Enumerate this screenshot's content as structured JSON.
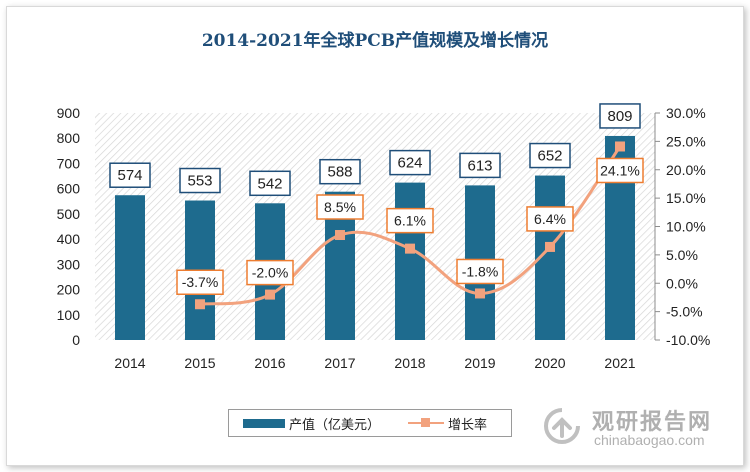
{
  "title": "2014-2021年全球PCB产值规模及增长情况",
  "legend": {
    "bar_label": "产值（亿美元）",
    "line_label": "增长率"
  },
  "watermark": {
    "name": "观研报告网",
    "domain": "chinabaogao.com"
  },
  "colors": {
    "bar": "#1e6b8e",
    "line": "#f2a27e",
    "label_border": "#1f4e79",
    "rate_border": "#ed7d31",
    "title": "#1f4e79"
  },
  "chart_data": {
    "type": "bar",
    "title": "2014-2021年全球PCB产值规模及增长情况",
    "categories": [
      "2014",
      "2015",
      "2016",
      "2017",
      "2018",
      "2019",
      "2020",
      "2021"
    ],
    "series": [
      {
        "name": "产值（亿美元）",
        "type": "bar",
        "axis": "left",
        "values": [
          574,
          553,
          542,
          588,
          624,
          613,
          652,
          809
        ],
        "labels": [
          "574",
          "553",
          "542",
          "588",
          "624",
          "613",
          "652",
          "809"
        ]
      },
      {
        "name": "增长率",
        "type": "line",
        "axis": "right",
        "values": [
          null,
          -3.7,
          -2.0,
          8.5,
          6.1,
          -1.8,
          6.4,
          24.1
        ],
        "labels": [
          "",
          "-3.7%",
          "-2.0%",
          "8.5%",
          "6.1%",
          "-1.8%",
          "6.4%",
          "24.1%"
        ]
      }
    ],
    "y_left": {
      "min": 0,
      "max": 900,
      "ticks": [
        "0",
        "100",
        "200",
        "300",
        "400",
        "500",
        "600",
        "700",
        "800",
        "900"
      ]
    },
    "y_right": {
      "min": -10,
      "max": 30,
      "ticks": [
        "-10.0%",
        "-5.0%",
        "0.0%",
        "5.0%",
        "10.0%",
        "15.0%",
        "20.0%",
        "25.0%",
        "30.0%"
      ]
    },
    "legend_position": "bottom",
    "grid": false
  }
}
